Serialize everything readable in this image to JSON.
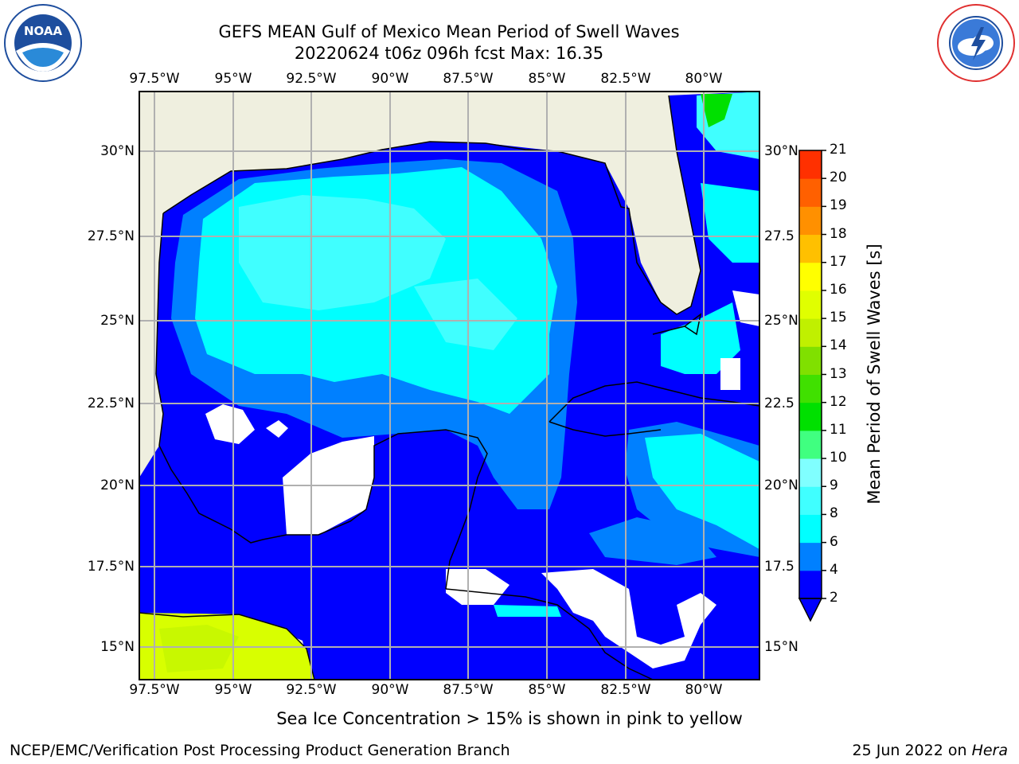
{
  "header": {
    "title_line1": "GEFS MEAN Gulf of Mexico Mean Period of Swell Waves",
    "title_line2": "20220624 t06z 096h fcst   Max: 16.35"
  },
  "logos": {
    "noaa_text": "NOAA",
    "noaa_ring_text": "NATIONAL OCEANIC AND ATMOSPHERIC ADMINISTRATION · U.S. DEPARTMENT OF COMMERCE",
    "nws_ring_text": "NATIONAL WEATHER SERVICE"
  },
  "map": {
    "lon_labels": [
      "97.5°W",
      "95°W",
      "92.5°W",
      "90°W",
      "87.5°W",
      "85°W",
      "82.5°W",
      "80°W"
    ],
    "lat_labels_left": [
      "30°N",
      "27.5°N",
      "25°N",
      "22.5°N",
      "20°N",
      "17.5°N",
      "15°N"
    ],
    "lat_labels_right": [
      "30°N",
      "27.5",
      "25°N",
      "22.5",
      "20°N",
      "17.5",
      "15°N"
    ],
    "land_color": "#efefdf",
    "grid_color": "#b0b0b0"
  },
  "colorbar": {
    "label": "Mean Period of Swell Waves [s]",
    "ticks": [
      "2",
      "4",
      "6",
      "8",
      "9",
      "10",
      "11",
      "12",
      "13",
      "14",
      "15",
      "16",
      "17",
      "18",
      "19",
      "20",
      "21"
    ],
    "colors": [
      "#0000ff",
      "#0080ff",
      "#00ffff",
      "#40ffff",
      "#80ffff",
      "#40ff80",
      "#00e000",
      "#40e000",
      "#80e000",
      "#c0f000",
      "#e0ff00",
      "#ffff00",
      "#ffc000",
      "#ff9000",
      "#ff6000",
      "#ff3000",
      "#ff0000"
    ]
  },
  "caption": "Sea Ice Concentration > 15% is shown in pink to yellow",
  "footer": {
    "left": "NCEP/EMC/Verification Post Processing Product Generation Branch",
    "right_date": "25 Jun 2022 on ",
    "right_host": "Hera"
  }
}
